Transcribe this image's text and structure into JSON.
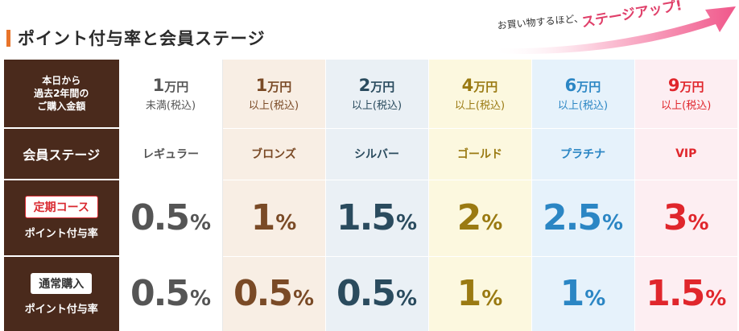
{
  "header": {
    "title": "ポイント付与率と会員ステージ",
    "promo_small": "お買い物するほど、",
    "promo_big": "ステージアップ!"
  },
  "table": {
    "row_headers": {
      "amount": [
        "本日から",
        "過去2年間の",
        "ご購入金額"
      ],
      "stage": "会員ステージ",
      "subscription_badge": "定期コース",
      "subscription_label": "ポイント付与率",
      "normal_badge": "通常購入",
      "normal_label": "ポイント付与率"
    },
    "columns": [
      {
        "amount": "1",
        "unit": "万円",
        "condition": "未満(税込)",
        "stage": "レギュラー",
        "sub_rate": "0.5",
        "normal_rate": "0.5",
        "color": "#555555"
      },
      {
        "amount": "1",
        "unit": "万円",
        "condition": "以上(税込)",
        "stage": "ブロンズ",
        "sub_rate": "1",
        "normal_rate": "0.5",
        "color": "#7a4a26"
      },
      {
        "amount": "2",
        "unit": "万円",
        "condition": "以上(税込)",
        "stage": "シルバー",
        "sub_rate": "1.5",
        "normal_rate": "0.5",
        "color": "#2a4b5e"
      },
      {
        "amount": "4",
        "unit": "万円",
        "condition": "以上(税込)",
        "stage": "ゴールド",
        "sub_rate": "2",
        "normal_rate": "1",
        "color": "#9a7a12"
      },
      {
        "amount": "6",
        "unit": "万円",
        "condition": "以上(税込)",
        "stage": "プラチナ",
        "sub_rate": "2.5",
        "normal_rate": "1",
        "color": "#2b86c4"
      },
      {
        "amount": "9",
        "unit": "万円",
        "condition": "以上(税込)",
        "stage": "VIP",
        "sub_rate": "3",
        "normal_rate": "1.5",
        "color": "#e0262c"
      }
    ],
    "percent_sign": "%"
  },
  "colors": {
    "header_bg": "#4a2a1c",
    "title_accent": "#e8742a",
    "promo_arrow": "#f0578a"
  }
}
